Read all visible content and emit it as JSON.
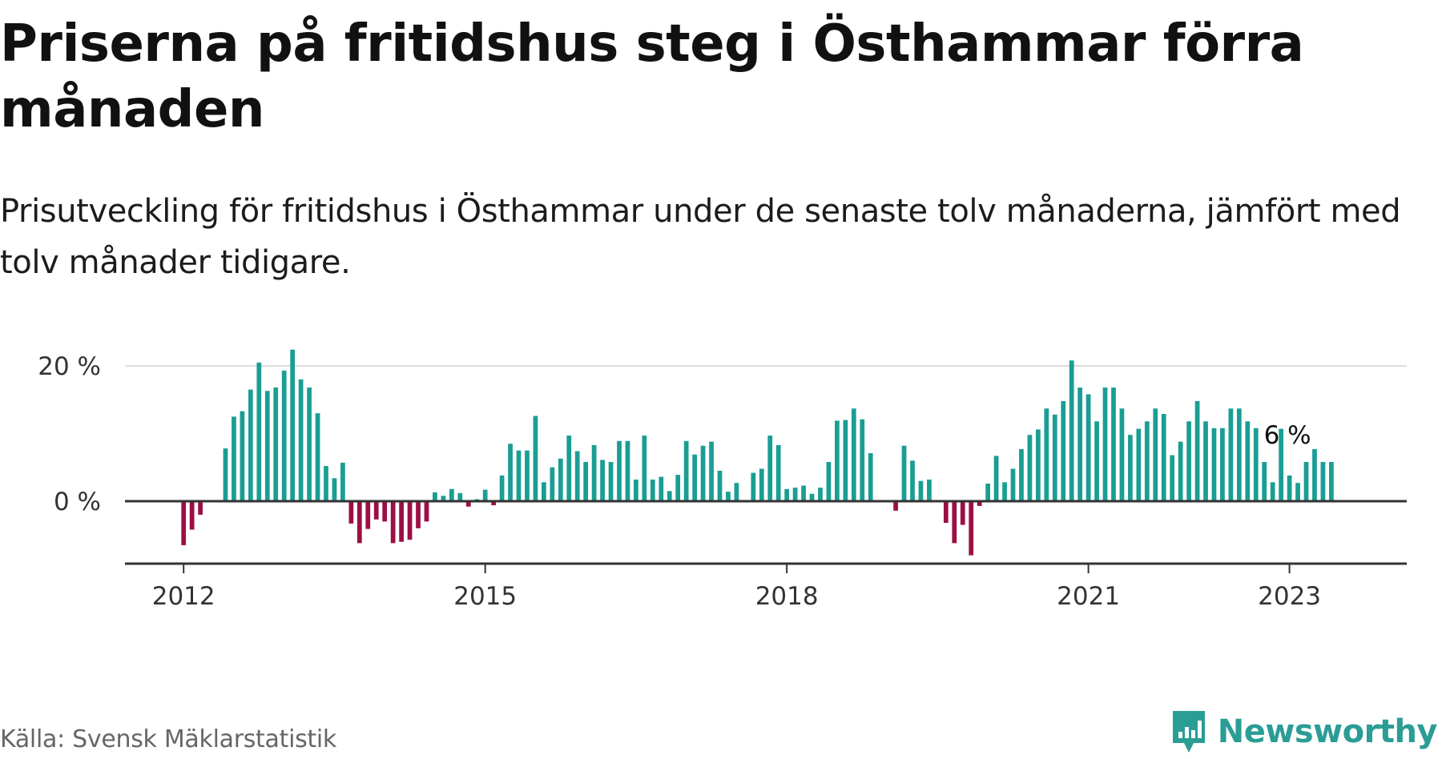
{
  "title": "Priserna på fritidshus steg i Östhammar förra månaden",
  "subtitle": "Prisutveckling för fritidshus i Östhammar under de senaste tolv månaderna, jämfört med tolv månader tidigare.",
  "source": "Källa: Svensk Mäklarstatistik",
  "brand": {
    "name": "Newsworthy",
    "icon": "newsworthy-logo-icon",
    "color": "#2a9d95"
  },
  "colors": {
    "positive": "#1a9e94",
    "negative": "#9c0f45",
    "grid": "#dddddd",
    "axis": "#333333"
  },
  "chart_data": {
    "type": "bar",
    "title": "",
    "xlabel": "",
    "ylabel": "",
    "x_start": "2012-01",
    "x_ticks": [
      "2012",
      "2015",
      "2018",
      "2021",
      "2023"
    ],
    "y_ticks": [
      {
        "value": 0,
        "label": "0 %"
      },
      {
        "value": 20,
        "label": "20 %"
      }
    ],
    "ylim": [
      -9,
      22
    ],
    "xlim": [
      "2011-06",
      "2024-03"
    ],
    "grid": true,
    "annotation": {
      "x": "2022-12",
      "label": "6 %"
    },
    "values": [
      -6.5,
      -4.2,
      -2.0,
      null,
      null,
      7.8,
      12.5,
      13.3,
      16.5,
      20.5,
      16.3,
      16.8,
      19.3,
      22.4,
      18.0,
      16.8,
      13.0,
      5.2,
      3.4,
      5.7,
      -3.3,
      -6.2,
      -4.1,
      -2.7,
      -3.0,
      -6.2,
      -6.0,
      -5.7,
      -4.0,
      -3.0,
      1.3,
      0.8,
      1.8,
      1.2,
      -0.8,
      0.3,
      1.7,
      -0.6,
      3.8,
      8.5,
      7.5,
      7.5,
      12.6,
      2.8,
      5.0,
      6.3,
      9.7,
      7.4,
      5.8,
      8.3,
      6.1,
      5.8,
      8.9,
      8.9,
      3.2,
      9.7,
      3.2,
      3.6,
      1.5,
      3.9,
      8.9,
      6.9,
      8.2,
      8.8,
      4.5,
      1.4,
      2.7,
      null,
      4.2,
      4.8,
      9.7,
      8.3,
      1.8,
      2.0,
      2.3,
      1.1,
      2.0,
      5.8,
      11.9,
      12.0,
      13.7,
      12.1,
      7.1,
      null,
      null,
      -1.4,
      8.2,
      6.0,
      3.0,
      3.2,
      null,
      -3.2,
      -6.2,
      -3.5,
      -8.0,
      -0.7,
      2.6,
      6.7,
      2.8,
      4.8,
      7.7,
      9.8,
      10.6,
      13.7,
      12.8,
      14.8,
      20.8,
      16.8,
      15.8,
      11.8,
      16.8,
      16.8,
      13.7,
      9.8,
      10.7,
      11.8,
      13.7,
      12.9,
      6.8,
      8.8,
      11.8,
      14.8,
      11.8,
      10.8,
      10.8,
      13.7,
      13.7,
      11.8,
      10.8,
      5.8,
      2.8,
      10.7,
      3.8,
      2.7,
      5.8,
      7.7,
      5.8,
      5.8
    ]
  }
}
